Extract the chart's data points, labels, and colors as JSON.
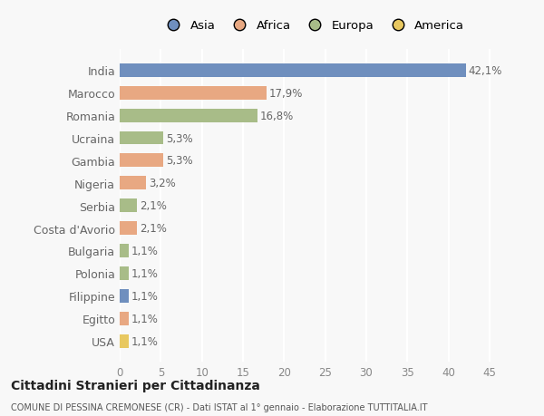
{
  "countries": [
    "India",
    "Marocco",
    "Romania",
    "Ucraina",
    "Gambia",
    "Nigeria",
    "Serbia",
    "Costa d'Avorio",
    "Bulgaria",
    "Polonia",
    "Filippine",
    "Egitto",
    "USA"
  ],
  "values": [
    42.1,
    17.9,
    16.8,
    5.3,
    5.3,
    3.2,
    2.1,
    2.1,
    1.1,
    1.1,
    1.1,
    1.1,
    1.1
  ],
  "labels": [
    "42,1%",
    "17,9%",
    "16,8%",
    "5,3%",
    "5,3%",
    "3,2%",
    "2,1%",
    "2,1%",
    "1,1%",
    "1,1%",
    "1,1%",
    "1,1%",
    "1,1%"
  ],
  "bar_colors": [
    "#6f8fbe",
    "#e8a882",
    "#a8bc88",
    "#a8bc88",
    "#e8a882",
    "#e8a882",
    "#a8bc88",
    "#e8a882",
    "#a8bc88",
    "#a8bc88",
    "#6f8fbe",
    "#e8a882",
    "#e8c860"
  ],
  "legend_labels": [
    "Asia",
    "Africa",
    "Europa",
    "America"
  ],
  "legend_colors": [
    "#6f8fbe",
    "#e8a882",
    "#a8bc88",
    "#e8c860"
  ],
  "title1": "Cittadini Stranieri per Cittadinanza",
  "title2": "COMUNE DI PESSINA CREMONESE (CR) - Dati ISTAT al 1° gennaio - Elaborazione TUTTITALIA.IT",
  "xlim": [
    0,
    47
  ],
  "xticks": [
    0,
    5,
    10,
    15,
    20,
    25,
    30,
    35,
    40,
    45
  ],
  "background_color": "#f8f8f8",
  "grid_color": "#ffffff",
  "label_color": "#666666",
  "tick_color": "#888888"
}
